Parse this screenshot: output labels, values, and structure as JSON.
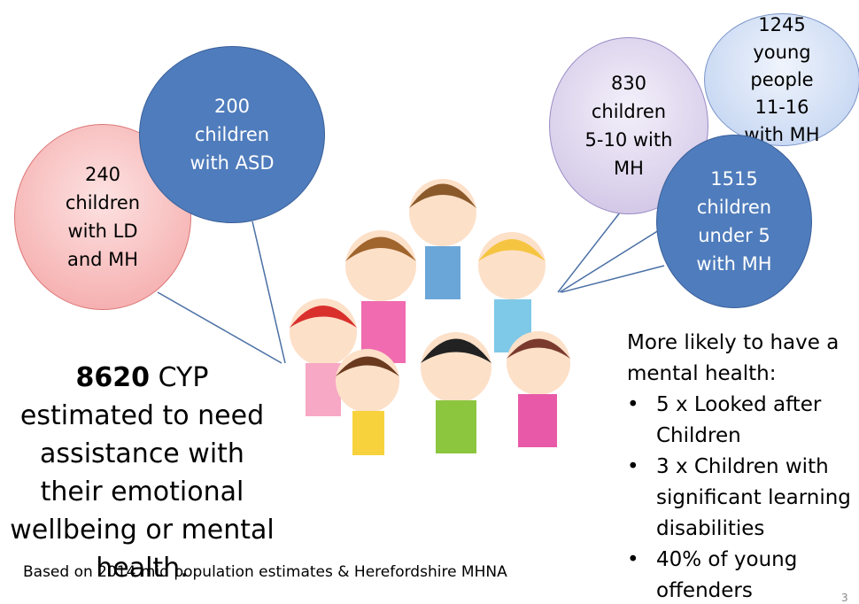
{
  "bubbles": [
    {
      "lines": [
        "240",
        "children",
        "with LD",
        "and MH"
      ]
    },
    {
      "lines": [
        "200",
        "children",
        "with ASD"
      ]
    },
    {
      "lines": [
        "1245",
        "young",
        "people",
        "11-16",
        "with MH"
      ]
    },
    {
      "lines": [
        "830",
        "children",
        "5-10 with",
        "MH"
      ]
    },
    {
      "lines": [
        "1515",
        "children",
        "under 5",
        "with MH"
      ]
    }
  ],
  "summary": {
    "number": "8620",
    "text": "CYP estimated to need assistance with their emotional wellbeing or mental health."
  },
  "footnote": "Based on 2014 mid population estimates & Herefordshire MHNA",
  "risk": {
    "heading": "More likely to have a mental health:",
    "items": [
      "5 x Looked after Children",
      "3 x Children with significant learning disabilities",
      "40% of young offenders"
    ]
  },
  "page_number": "3"
}
